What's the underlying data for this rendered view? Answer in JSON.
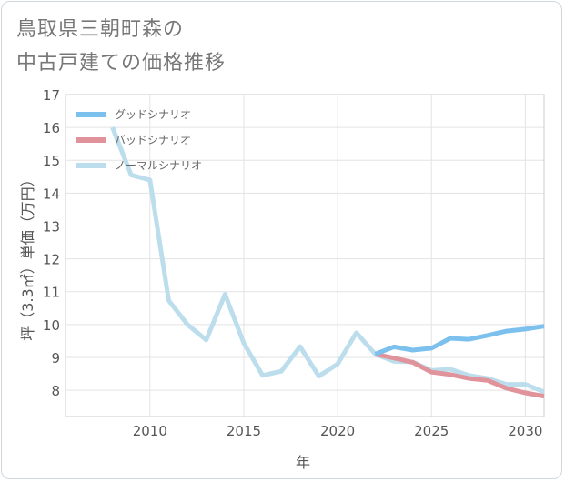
{
  "title_lines": [
    "鳥取県三朝町森の",
    "中古戸建ての価格推移"
  ],
  "chart_data": {
    "type": "line",
    "title": "鳥取県三朝町森の中古戸建ての価格推移",
    "xlabel": "年",
    "ylabel": "坪（3.3㎡）単価（万円）",
    "xlim": [
      2005.5,
      2031
    ],
    "ylim": [
      7.2,
      17
    ],
    "xticks": [
      2010,
      2015,
      2020,
      2025,
      2030
    ],
    "yticks": [
      8,
      9,
      10,
      11,
      12,
      13,
      14,
      15,
      16,
      17
    ],
    "grid": true,
    "legend_position": "top-left",
    "series": [
      {
        "name": "グッドシナリオ",
        "color": "#7cc0ee",
        "x": [
          2022,
          2023,
          2024,
          2025,
          2026,
          2027,
          2028,
          2029,
          2030,
          2031
        ],
        "y": [
          9.1,
          9.32,
          9.22,
          9.28,
          9.58,
          9.55,
          9.67,
          9.8,
          9.86,
          9.95
        ]
      },
      {
        "name": "バッドシナリオ",
        "color": "#e0939b",
        "x": [
          2022,
          2023,
          2024,
          2025,
          2026,
          2027,
          2028,
          2029,
          2030,
          2031
        ],
        "y": [
          9.1,
          8.98,
          8.85,
          8.55,
          8.48,
          8.36,
          8.3,
          8.06,
          7.92,
          7.82
        ]
      },
      {
        "name": "ノーマルシナリオ",
        "color": "#bcdeec",
        "x": [
          2008,
          2009,
          2010,
          2011,
          2012,
          2013,
          2014,
          2015,
          2016,
          2017,
          2018,
          2019,
          2020,
          2021,
          2022,
          2023,
          2024,
          2025,
          2026,
          2027,
          2028,
          2029,
          2030,
          2031
        ],
        "y": [
          16.0,
          14.55,
          14.4,
          10.73,
          10.0,
          9.53,
          10.92,
          9.43,
          8.45,
          8.58,
          9.33,
          8.43,
          8.8,
          9.75,
          9.1,
          8.88,
          8.86,
          8.6,
          8.64,
          8.45,
          8.36,
          8.18,
          8.18,
          7.95
        ]
      }
    ]
  }
}
